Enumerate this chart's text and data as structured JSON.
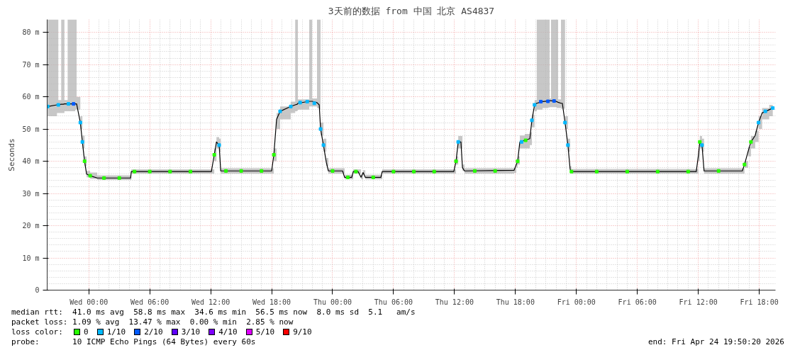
{
  "chart_data": {
    "type": "line",
    "title": "3天前的数据 from 中国 北京 AS4837",
    "ylabel": "Seconds",
    "legend_title": "loss color:",
    "legend": "bottom",
    "grid": true,
    "line_style": "solid",
    "xlim": [
      "2026-04-21T19:54",
      "2026-04-24T19:36"
    ],
    "ylim": [
      0,
      84
    ],
    "xticks": [
      {
        "value": "2026-04-22T00:00",
        "label": "Wed 00:00"
      },
      {
        "value": "2026-04-22T06:00",
        "label": "Wed 06:00"
      },
      {
        "value": "2026-04-22T12:00",
        "label": "Wed 12:00"
      },
      {
        "value": "2026-04-22T18:00",
        "label": "Wed 18:00"
      },
      {
        "value": "2026-04-23T00:00",
        "label": "Thu 00:00"
      },
      {
        "value": "2026-04-23T06:00",
        "label": "Thu 06:00"
      },
      {
        "value": "2026-04-23T12:00",
        "label": "Thu 12:00"
      },
      {
        "value": "2026-04-23T18:00",
        "label": "Thu 18:00"
      },
      {
        "value": "2026-04-24T00:00",
        "label": "Fri 00:00"
      },
      {
        "value": "2026-04-24T06:00",
        "label": "Fri 06:00"
      },
      {
        "value": "2026-04-24T12:00",
        "label": "Fri 12:00"
      },
      {
        "value": "2026-04-24T18:00",
        "label": "Fri 18:00"
      }
    ],
    "yticks": [
      0,
      {
        "value": 10,
        "label": "10 m"
      },
      {
        "value": 20,
        "label": "20 m"
      },
      {
        "value": 30,
        "label": "30 m"
      },
      {
        "value": 40,
        "label": "40 m"
      },
      {
        "value": 50,
        "label": "50 m"
      },
      {
        "value": 60,
        "label": "60 m"
      },
      {
        "value": 70,
        "label": "70 m"
      },
      {
        "value": 80,
        "label": "80 m"
      }
    ],
    "series": [
      {
        "color": "#000000",
        "x": [
          "2026-04-21T19:57",
          "2026-04-21T20:52",
          "2026-04-21T21:00",
          "2026-04-21T21:17",
          "2026-04-21T21:29",
          "2026-04-21T21:36",
          "2026-04-21T21:55",
          "2026-04-21T22:40",
          "2026-04-21T22:48",
          "2026-04-21T23:10",
          "2026-04-21T23:22",
          "2026-04-21T23:35",
          "2026-04-21T23:47",
          "2026-04-22T00:08",
          "2026-04-22T00:50",
          "2026-04-22T04:07",
          "2026-04-22T04:11",
          "2026-04-22T12:04",
          "2026-04-22T12:21",
          "2026-04-22T12:34",
          "2026-04-22T12:50",
          "2026-04-22T12:59",
          "2026-04-22T18:00",
          "2026-04-22T18:13",
          "2026-04-22T18:29",
          "2026-04-22T18:50",
          "2026-04-22T19:53",
          "2026-04-22T20:19",
          "2026-04-22T20:31",
          "2026-04-22T20:35",
          "2026-04-22T21:42",
          "2026-04-22T21:55",
          "2026-04-22T21:59",
          "2026-04-22T22:28",
          "2026-04-22T22:41",
          "2026-04-22T22:49",
          "2026-04-22T23:06",
          "2026-04-22T23:23",
          "2026-04-22T23:35",
          "2026-04-23T00:59",
          "2026-04-23T01:11",
          "2026-04-23T01:53",
          "2026-04-23T02:02",
          "2026-04-23T02:31",
          "2026-04-23T02:48",
          "2026-04-23T03:00",
          "2026-04-23T03:13",
          "2026-04-23T04:45",
          "2026-04-23T04:53",
          "2026-04-23T11:56",
          "2026-04-23T12:09",
          "2026-04-23T12:22",
          "2026-04-23T12:38",
          "2026-04-23T12:47",
          "2026-04-23T12:59",
          "2026-04-23T17:52",
          "2026-04-23T18:05",
          "2026-04-23T18:13",
          "2026-04-23T18:26",
          "2026-04-23T18:55",
          "2026-04-23T19:25",
          "2026-04-23T19:37",
          "2026-04-23T19:53",
          "2026-04-23T20:06",
          "2026-04-23T20:40",
          "2026-04-23T21:13",
          "2026-04-23T21:22",
          "2026-04-23T21:30",
          "2026-04-23T22:04",
          "2026-04-23T22:12",
          "2026-04-23T22:29",
          "2026-04-23T22:37",
          "2026-04-23T22:53",
          "2026-04-23T23:10",
          "2026-04-23T23:23",
          "2026-04-23T23:31",
          "2026-04-24T11:48",
          "2026-04-24T12:01",
          "2026-04-24T12:09",
          "2026-04-24T12:22",
          "2026-04-24T12:34",
          "2026-04-24T16:20",
          "2026-04-24T16:33",
          "2026-04-24T16:54",
          "2026-04-24T17:11",
          "2026-04-24T17:36",
          "2026-04-24T17:56",
          "2026-04-24T18:17",
          "2026-04-24T18:59",
          "2026-04-24T19:20"
        ],
        "values": [
          57,
          57.5,
          57.5,
          57.7,
          57.7,
          57.8,
          57.8,
          57.8,
          57.8,
          52,
          46,
          40,
          36,
          35.5,
          34.8,
          34.8,
          36.8,
          36.8,
          42,
          46,
          45,
          37,
          37,
          42,
          53,
          55.5,
          57,
          57.5,
          57.7,
          58,
          58.6,
          58.6,
          58.6,
          58.2,
          57.5,
          50,
          45,
          39.6,
          37,
          37,
          35,
          35,
          36.8,
          36.8,
          35,
          36.5,
          35,
          35,
          36.8,
          36.8,
          40,
          46,
          46,
          38,
          37,
          37.2,
          39,
          40,
          46,
          46.5,
          47,
          52.7,
          57.5,
          58,
          58.5,
          58.7,
          58.8,
          58.8,
          58.5,
          58.3,
          58,
          58,
          52,
          45,
          37.5,
          36.8,
          36.8,
          42,
          46,
          45,
          37,
          37,
          39,
          43,
          46,
          48,
          52,
          55,
          56,
          56.5
        ],
        "lower": [
          54,
          55,
          55,
          55,
          55,
          55.5,
          55.5,
          56,
          56,
          50,
          44,
          38.5,
          35,
          34.5,
          34.2,
          34.2,
          36.2,
          36.2,
          40,
          44,
          43,
          36.2,
          36.2,
          40,
          50,
          53,
          55,
          55.5,
          55.7,
          56,
          57,
          57,
          57,
          56.5,
          56,
          48,
          43,
          38.5,
          36.2,
          36.2,
          34.4,
          34.4,
          36.2,
          36.2,
          34.4,
          35.8,
          34.4,
          34.4,
          36.2,
          36.2,
          39,
          44,
          44,
          37,
          36.2,
          36.4,
          38,
          39,
          44,
          44,
          45,
          50.5,
          55.5,
          56,
          56.5,
          56.7,
          56.8,
          56.8,
          56.5,
          56.5,
          56.3,
          56.3,
          50,
          43,
          36.5,
          36.2,
          36.2,
          40,
          44,
          43,
          36.2,
          36.2,
          38,
          41.5,
          44,
          46,
          50,
          53,
          54,
          54.5
        ],
        "upper": [
          84,
          84,
          59,
          84,
          84,
          59,
          84,
          84,
          60,
          54,
          48,
          41.5,
          37,
          36.5,
          35.6,
          35.6,
          37.5,
          37.5,
          44,
          47.5,
          47,
          37.8,
          37.8,
          44,
          55,
          57,
          58.5,
          84,
          84,
          59.2,
          84,
          84,
          59.5,
          84,
          84,
          52,
          47,
          41,
          37.8,
          37.8,
          35.8,
          35.8,
          37.5,
          37.5,
          35.8,
          37.2,
          35.8,
          35.8,
          37.5,
          37.5,
          41.5,
          47.8,
          47.8,
          39,
          37.8,
          38,
          40,
          41.5,
          48,
          48.5,
          49,
          54.5,
          59,
          84,
          84,
          84,
          59.5,
          84,
          84,
          59.2,
          84,
          84,
          54,
          47,
          38.5,
          37.6,
          37.6,
          44,
          47.8,
          47,
          37.8,
          37.8,
          40,
          44.5,
          47.8,
          49.5,
          54,
          56.5,
          57.5,
          58
        ]
      },
      {
        "type": "scatter",
        "name": "0",
        "color": "#26ff00",
        "marker": "square",
        "x": [
          "2026-04-21T23:35",
          "2026-04-22T00:08",
          "2026-04-22T01:30",
          "2026-04-22T03:00",
          "2026-04-22T04:30",
          "2026-04-22T06:00",
          "2026-04-22T08:00",
          "2026-04-22T10:00",
          "2026-04-22T12:21",
          "2026-04-22T13:30",
          "2026-04-22T15:00",
          "2026-04-22T17:00",
          "2026-04-22T18:13",
          "2026-04-23T00:00",
          "2026-04-23T01:30",
          "2026-04-23T02:18",
          "2026-04-23T04:00",
          "2026-04-23T06:00",
          "2026-04-23T08:00",
          "2026-04-23T10:00",
          "2026-04-23T12:09",
          "2026-04-23T14:00",
          "2026-04-23T16:00",
          "2026-04-23T18:13",
          "2026-04-23T19:00",
          "2026-04-23T23:31",
          "2026-04-24T02:00",
          "2026-04-24T05:00",
          "2026-04-24T08:00",
          "2026-04-24T11:00",
          "2026-04-24T12:09",
          "2026-04-24T14:00",
          "2026-04-24T16:33",
          "2026-04-24T17:11"
        ],
        "values": [
          40,
          35.5,
          34.8,
          34.8,
          36.8,
          36.8,
          36.8,
          36.8,
          42,
          37,
          37,
          37,
          42,
          37,
          35,
          36.8,
          35,
          36.8,
          36.8,
          36.8,
          40,
          37,
          37,
          40,
          46.5,
          36.8,
          36.8,
          36.8,
          36.8,
          36.8,
          46,
          37,
          39,
          46
        ]
      },
      {
        "type": "scatter",
        "name": "1/10",
        "color": "#00b8ff",
        "marker": "square",
        "x": [
          "2026-04-21T19:57",
          "2026-04-21T21:00",
          "2026-04-21T22:00",
          "2026-04-21T23:10",
          "2026-04-21T23:22",
          "2026-04-22T12:50",
          "2026-04-22T18:50",
          "2026-04-22T19:53",
          "2026-04-22T20:48",
          "2026-04-22T21:30",
          "2026-04-22T22:12",
          "2026-04-22T22:49",
          "2026-04-22T23:06",
          "2026-04-23T12:22",
          "2026-04-23T18:36",
          "2026-04-23T19:37",
          "2026-04-23T19:53",
          "2026-04-23T22:53",
          "2026-04-23T23:10",
          "2026-04-24T12:22",
          "2026-04-24T17:56",
          "2026-04-24T18:36",
          "2026-04-24T19:20"
        ],
        "values": [
          57,
          57.5,
          57.8,
          52,
          46,
          45,
          55.5,
          57,
          58.2,
          58.5,
          58,
          50,
          45,
          46,
          46,
          52.7,
          57.5,
          52,
          45,
          45,
          52,
          55.5,
          56.5
        ]
      },
      {
        "type": "scatter",
        "name": "2/10",
        "color": "#0059ff",
        "marker": "square",
        "x": [
          "2026-04-21T22:30",
          "2026-04-23T20:30",
          "2026-04-23T21:12",
          "2026-04-23T21:48"
        ],
        "values": [
          57.8,
          58.5,
          58.6,
          58.7
        ]
      },
      {
        "type": "scatter",
        "name": "3/10",
        "color": "#5e00ff",
        "marker": "square"
      },
      {
        "type": "scatter",
        "name": "4/10",
        "color": "#7e00ff",
        "marker": "square"
      },
      {
        "type": "scatter",
        "name": "5/10",
        "color": "#dd00ff",
        "marker": "square"
      },
      {
        "type": "scatter",
        "name": "9/10",
        "color": "#ff0000",
        "marker": "square"
      }
    ],
    "annotations": [
      "median rtt:  41.0 ms avg  58.8 ms max  34.6 ms min  56.5 ms now  8.0 ms sd  5.1   am/s",
      "packet loss: 1.09 % avg  13.47 % max  0.00 % min  2.85 % now",
      "probe:       10 ICMP Echo Pings (64 Bytes) every 60s",
      "end: Fri Apr 24 19:50:20 2026"
    ]
  }
}
